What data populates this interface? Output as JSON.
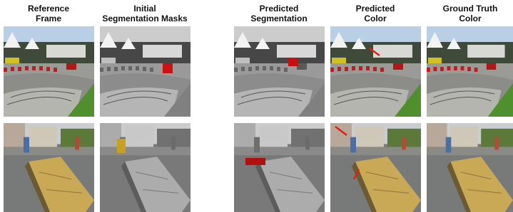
{
  "figure": {
    "columns": [
      {
        "lines": [
          "Reference",
          "Frame"
        ]
      },
      {
        "lines": [
          "Initial",
          "Segmentation Masks"
        ]
      },
      {
        "lines": [
          "Predicted",
          "Segmentation"
        ]
      },
      {
        "lines": [
          "Predicted",
          "Color"
        ]
      },
      {
        "lines": [
          "Ground Truth",
          "Color"
        ]
      }
    ]
  }
}
